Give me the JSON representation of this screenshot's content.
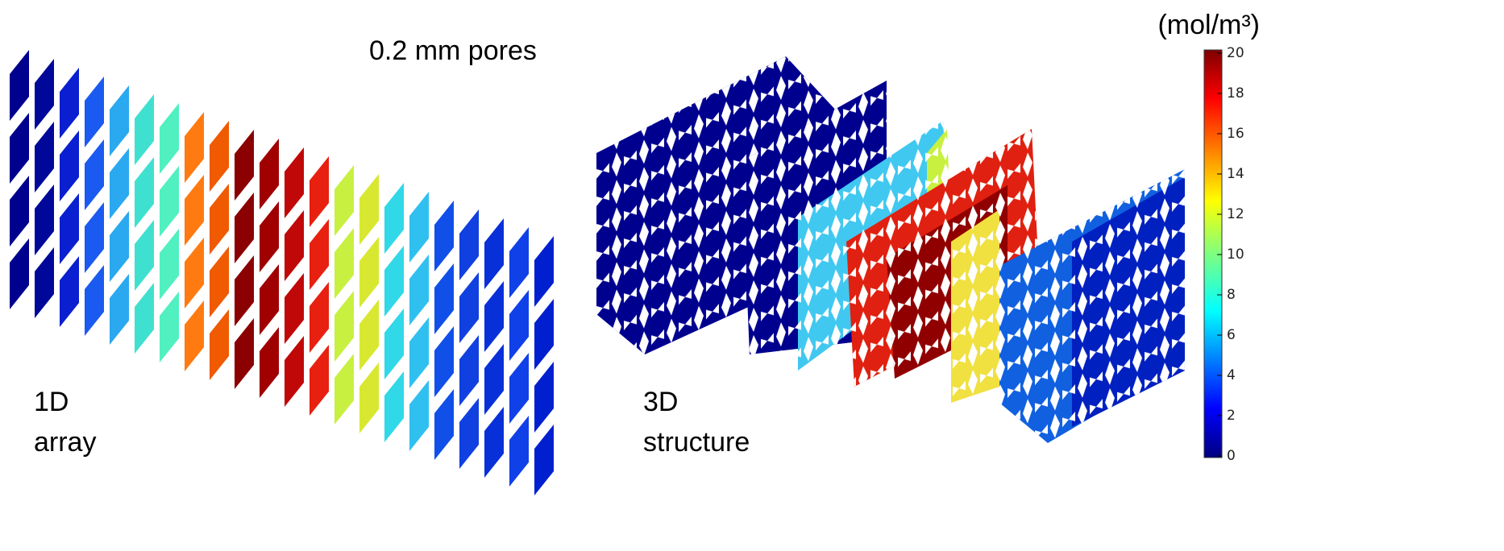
{
  "title": "0.2 mm pores",
  "panels": [
    {
      "label_lines": [
        "1D",
        "array"
      ]
    },
    {
      "label_lines": [
        "3D",
        "structure"
      ]
    }
  ],
  "colorbar": {
    "unit": "(mol/m³)",
    "lim": [
      0,
      20
    ],
    "ticks": [
      0,
      2,
      4,
      6,
      8,
      10,
      12,
      14,
      16,
      18,
      20
    ]
  }
}
